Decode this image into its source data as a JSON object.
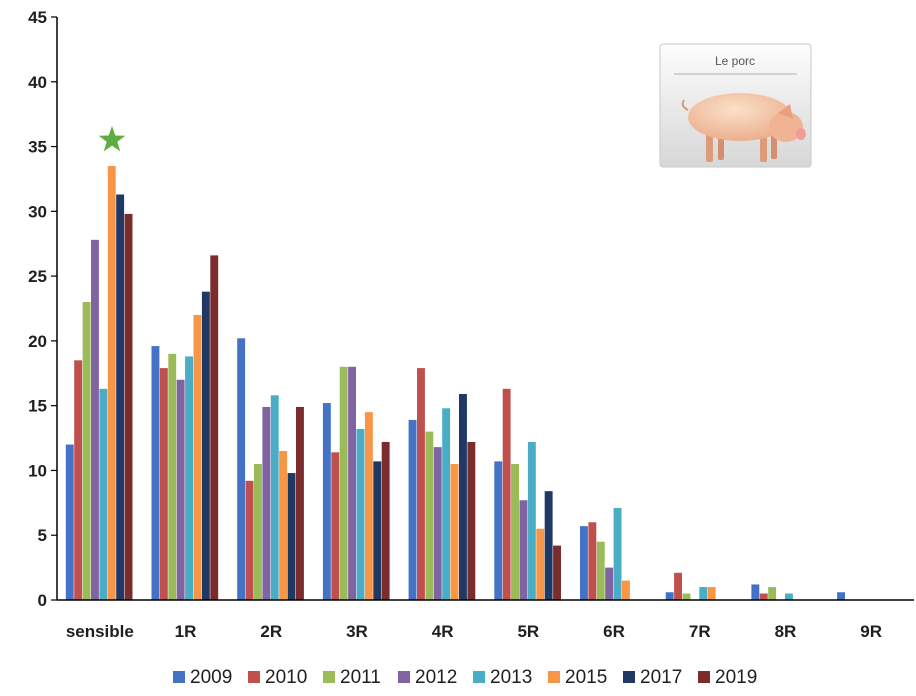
{
  "chart_data": {
    "type": "bar",
    "categories": [
      "sensible",
      "1R",
      "2R",
      "3R",
      "4R",
      "5R",
      "6R",
      "7R",
      "8R",
      "9R"
    ],
    "series": [
      {
        "name": "2009",
        "color": "#4472C4",
        "values": [
          12.0,
          19.6,
          20.2,
          15.2,
          13.9,
          10.7,
          5.7,
          0.6,
          1.2,
          0.6
        ]
      },
      {
        "name": "2010",
        "color": "#C0504D",
        "values": [
          18.5,
          17.9,
          9.2,
          11.4,
          17.9,
          16.3,
          6.0,
          2.1,
          0.5,
          0
        ]
      },
      {
        "name": "2011",
        "color": "#9BBB59",
        "values": [
          23.0,
          19.0,
          10.5,
          18.0,
          13.0,
          10.5,
          4.5,
          0.5,
          1.0,
          0
        ]
      },
      {
        "name": "2012",
        "color": "#8064A2",
        "values": [
          27.8,
          17.0,
          14.9,
          18.0,
          11.8,
          7.7,
          2.5,
          0,
          0,
          0
        ]
      },
      {
        "name": "2013",
        "color": "#4BACC6",
        "values": [
          16.3,
          18.8,
          15.8,
          13.2,
          14.8,
          12.2,
          7.1,
          1.0,
          0.5,
          0
        ]
      },
      {
        "name": "2015",
        "color": "#F79646",
        "values": [
          33.5,
          22.0,
          11.5,
          14.5,
          10.5,
          5.5,
          1.5,
          1.0,
          0,
          0
        ]
      },
      {
        "name": "2017",
        "color": "#1F3864",
        "values": [
          31.3,
          23.8,
          9.8,
          10.7,
          15.9,
          8.4,
          0,
          0,
          0,
          0
        ]
      },
      {
        "name": "2019",
        "color": "#7B2C2C",
        "values": [
          29.8,
          26.6,
          14.9,
          12.2,
          12.2,
          4.2,
          0,
          0,
          0,
          0
        ]
      }
    ],
    "yticks": [
      "0",
      "5",
      "10",
      "15",
      "20",
      "25",
      "30",
      "35",
      "40",
      "45"
    ],
    "ylim": [
      0,
      45
    ],
    "title": "",
    "xlabel": "",
    "ylabel": "",
    "grid": false,
    "legend_position": "bottom",
    "marker": {
      "category": "sensible",
      "symbol": "star",
      "value": 35.5,
      "color": "#5EAD3E"
    }
  },
  "inset": {
    "caption": "Le porc",
    "icon": "pig-icon"
  }
}
